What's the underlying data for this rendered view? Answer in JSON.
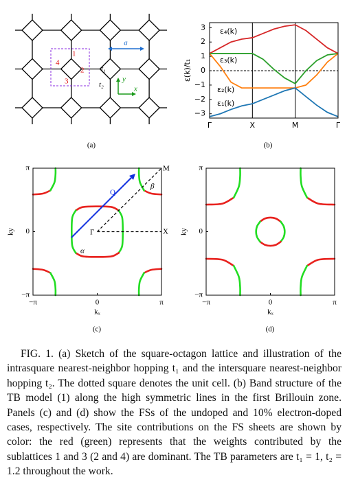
{
  "figure": {
    "panels": [
      "(a)",
      "(b)",
      "(c)",
      "(d)"
    ],
    "caption": "FIG. 1. (a) Sketch of the square-octagon lattice and illustration of the intrasquare nearest-neighbor hopping t₁ and the intersquare nearest-neighbor hopping t₂. The dotted square denotes the unit cell. (b) Band structure of the TB model (1) along the high symmetric lines in the first Brillouin zone. Panels (c) and (d) show the FSs of the undoped and 10% electron-doped cases, respectively. The site contributions on the FS sheets are shown by color: the red (green) represents that the weights contributed by the sublattices 1 and 3 (2 and 4) are dominant. The TB parameters are t₁ = 1, t₂ = 1.2 throughout the work."
  },
  "diagram": {
    "sites": [
      "1",
      "2",
      "3",
      "4"
    ],
    "hoppings": [
      "t₁",
      "t₂"
    ],
    "lattice_constant": "a",
    "axes": [
      "x",
      "y"
    ]
  },
  "chart_data": [
    {
      "type": "line",
      "ylabel": "ε(k)/t₁",
      "x": [
        0,
        0.25,
        0.5,
        0.75,
        1,
        1.25,
        1.5,
        1.75,
        2,
        2.25,
        2.5,
        2.75,
        3
      ],
      "series": [
        {
          "name": "ε₄(k)",
          "color": "#d62728",
          "values": [
            1.2,
            1.6,
            2.0,
            2.2,
            2.3,
            2.6,
            2.9,
            3.1,
            3.2,
            2.8,
            2.2,
            1.6,
            1.2
          ]
        },
        {
          "name": "ε₃(k)",
          "color": "#2ca02c",
          "values": [
            1.2,
            1.2,
            1.2,
            1.2,
            1.2,
            0.8,
            0.1,
            -0.5,
            -0.9,
            0.0,
            0.7,
            1.1,
            1.2
          ]
        },
        {
          "name": "ε₂(k)",
          "color": "#ff7f0e",
          "values": [
            1.2,
            0.3,
            -0.8,
            -1.2,
            -1.2,
            -1.2,
            -1.2,
            -1.2,
            -1.2,
            -1.0,
            -0.3,
            0.6,
            1.2
          ]
        },
        {
          "name": "ε₁(k)",
          "color": "#1f77b4",
          "values": [
            -3.2,
            -3.0,
            -2.7,
            -2.45,
            -2.3,
            -2.0,
            -1.7,
            -1.4,
            -1.2,
            -1.8,
            -2.4,
            -2.9,
            -3.2
          ]
        }
      ],
      "xlim": [
        0,
        3
      ],
      "xticks": [
        {
          "value": 0,
          "label": "Γ"
        },
        {
          "value": 1,
          "label": "X"
        },
        {
          "value": 2,
          "label": "M"
        },
        {
          "value": 3,
          "label": "Γ"
        }
      ],
      "ylim": [
        -3.3,
        3.35
      ],
      "yticks": [
        {
          "value": -3,
          "label": "−3"
        },
        {
          "value": -2,
          "label": "−2"
        },
        {
          "value": -1,
          "label": "−1"
        },
        0,
        1,
        2,
        3
      ],
      "reference_line": 0
    },
    {
      "type": "contour",
      "xlabel": "kₓ",
      "ylabel": "ky",
      "xlim": [
        -3.1416,
        3.1416
      ],
      "ylim": [
        -3.1416,
        3.1416
      ],
      "xticks": [
        {
          "value": -3.1416,
          "label": "−π"
        },
        0,
        {
          "value": 3.1416,
          "label": "π"
        }
      ],
      "yticks": [
        {
          "value": -3.1416,
          "label": "−π"
        },
        0,
        {
          "value": 3.1416,
          "label": "π"
        }
      ],
      "annotations": [
        "Q",
        "β",
        "α",
        "Γ",
        "X",
        "M"
      ],
      "curves": [
        {
          "color": "#e8221e",
          "x": [
            -1.05,
            -0.7,
            0,
            0.7,
            1.05
          ],
          "y": [
            1.05,
            1.22,
            1.25,
            1.22,
            1.05
          ]
        },
        {
          "color": "#22dd22",
          "x": [
            1.05,
            1.22,
            1.25,
            1.22,
            1.05
          ],
          "y": [
            1.05,
            0.7,
            0,
            -0.7,
            -1.05
          ]
        },
        {
          "color": "#e8221e",
          "x": [
            1.05,
            0.7,
            0,
            -0.7,
            -1.05
          ],
          "y": [
            -1.05,
            -1.22,
            -1.25,
            -1.22,
            -1.05
          ]
        },
        {
          "color": "#22dd22",
          "x": [
            -1.05,
            -1.22,
            -1.25,
            -1.22,
            -1.05
          ],
          "y": [
            -1.05,
            -0.7,
            0,
            0.7,
            1.05
          ]
        },
        {
          "color": "#e8221e",
          "x": [
            -3.14,
            -2.64,
            -2.29
          ],
          "y": [
            1.84,
            1.89,
            2.04
          ]
        },
        {
          "color": "#22dd22",
          "x": [
            -2.29,
            -2.09,
            -2.04,
            -2.04
          ],
          "y": [
            2.04,
            2.44,
            2.84,
            3.14
          ]
        },
        {
          "color": "#e8221e",
          "x": [
            3.14,
            2.64,
            2.29
          ],
          "y": [
            1.84,
            1.89,
            2.04
          ]
        },
        {
          "color": "#22dd22",
          "x": [
            2.29,
            2.09,
            2.04,
            2.04
          ],
          "y": [
            2.04,
            2.44,
            2.84,
            3.14
          ]
        },
        {
          "color": "#e8221e",
          "x": [
            -3.14,
            -2.64,
            -2.29
          ],
          "y": [
            -1.84,
            -1.89,
            -2.04
          ]
        },
        {
          "color": "#22dd22",
          "x": [
            -2.29,
            -2.09,
            -2.04,
            -2.04
          ],
          "y": [
            -2.04,
            -2.44,
            -2.84,
            -3.14
          ]
        },
        {
          "color": "#e8221e",
          "x": [
            3.14,
            2.64,
            2.29
          ],
          "y": [
            -1.84,
            -1.89,
            -2.04
          ]
        },
        {
          "color": "#22dd22",
          "x": [
            2.29,
            2.09,
            2.04,
            2.04
          ],
          "y": [
            -2.04,
            -2.44,
            -2.84,
            -3.14
          ]
        }
      ]
    },
    {
      "type": "contour",
      "xlabel": "kₓ",
      "ylabel": "ky",
      "xlim": [
        -3.1416,
        3.1416
      ],
      "ylim": [
        -3.1416,
        3.1416
      ],
      "xticks": [
        {
          "value": -3.1416,
          "label": "−π"
        },
        0,
        {
          "value": 3.1416,
          "label": "π"
        }
      ],
      "yticks": [
        {
          "value": -3.1416,
          "label": "−π"
        },
        0,
        {
          "value": 3.1416,
          "label": "π"
        }
      ],
      "curves": [
        {
          "color": "#e8221e",
          "x": [
            -0.5,
            -0.27,
            0,
            0.27,
            0.5
          ],
          "y": [
            0.5,
            0.65,
            0.7,
            0.65,
            0.5
          ]
        },
        {
          "color": "#22dd22",
          "x": [
            0.5,
            0.65,
            0.7,
            0.65,
            0.5
          ],
          "y": [
            0.5,
            0.27,
            0,
            -0.27,
            -0.5
          ]
        },
        {
          "color": "#e8221e",
          "x": [
            0.5,
            0.27,
            0,
            -0.27,
            -0.5
          ],
          "y": [
            -0.5,
            -0.65,
            -0.7,
            -0.65,
            -0.5
          ]
        },
        {
          "color": "#22dd22",
          "x": [
            -0.5,
            -0.65,
            -0.7,
            -0.65,
            -0.5
          ],
          "y": [
            -0.5,
            -0.27,
            0,
            0.27,
            0.5
          ]
        },
        {
          "color": "#e8221e",
          "x": [
            -3.14,
            -2.34,
            -1.79
          ],
          "y": [
            1.34,
            1.39,
            1.69
          ]
        },
        {
          "color": "#22dd22",
          "x": [
            -1.79,
            -1.54,
            -1.48,
            -1.48
          ],
          "y": [
            1.69,
            2.24,
            2.74,
            3.14
          ]
        },
        {
          "color": "#e8221e",
          "x": [
            3.14,
            2.34,
            1.79
          ],
          "y": [
            1.34,
            1.39,
            1.69
          ]
        },
        {
          "color": "#22dd22",
          "x": [
            1.79,
            1.54,
            1.48,
            1.48
          ],
          "y": [
            1.69,
            2.24,
            2.74,
            3.14
          ]
        },
        {
          "color": "#e8221e",
          "x": [
            -3.14,
            -2.34,
            -1.79
          ],
          "y": [
            -1.34,
            -1.39,
            -1.69
          ]
        },
        {
          "color": "#22dd22",
          "x": [
            -1.79,
            -1.54,
            -1.48,
            -1.48
          ],
          "y": [
            -1.69,
            -2.24,
            -2.74,
            -3.14
          ]
        },
        {
          "color": "#e8221e",
          "x": [
            3.14,
            2.34,
            1.79
          ],
          "y": [
            -1.34,
            -1.39,
            -1.69
          ]
        },
        {
          "color": "#22dd22",
          "x": [
            1.79,
            1.54,
            1.48,
            1.48
          ],
          "y": [
            -1.69,
            -2.24,
            -2.74,
            -3.14
          ]
        }
      ]
    }
  ]
}
